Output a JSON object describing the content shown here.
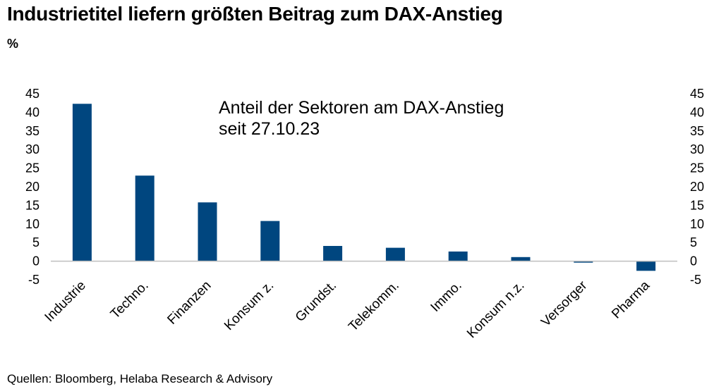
{
  "chart_data": {
    "type": "bar",
    "title": "Industrietitel liefern größten Beitrag zum DAX-Anstieg",
    "unit_label": "%",
    "annotation": [
      "Anteil der Sektoren am DAX-Anstieg",
      "seit 27.10.23"
    ],
    "source": "Quellen: Bloomberg, Helaba Research & Advisory",
    "categories": [
      "Industrie",
      "Techno.",
      "Finanzen",
      "Konsum z.",
      "Grundst.",
      "Telekomm.",
      "Immo.",
      "Konsum n.z.",
      "Versorger",
      "Pharma"
    ],
    "values": [
      42.3,
      23.0,
      15.8,
      10.8,
      4.1,
      3.6,
      2.6,
      1.1,
      -0.4,
      -2.6
    ],
    "ylim": [
      -5,
      45
    ],
    "yticks": [
      45,
      40,
      35,
      30,
      25,
      20,
      15,
      10,
      5,
      0,
      -5
    ],
    "bar_color": "#00467f",
    "axis_color": "#bfbfbf"
  }
}
